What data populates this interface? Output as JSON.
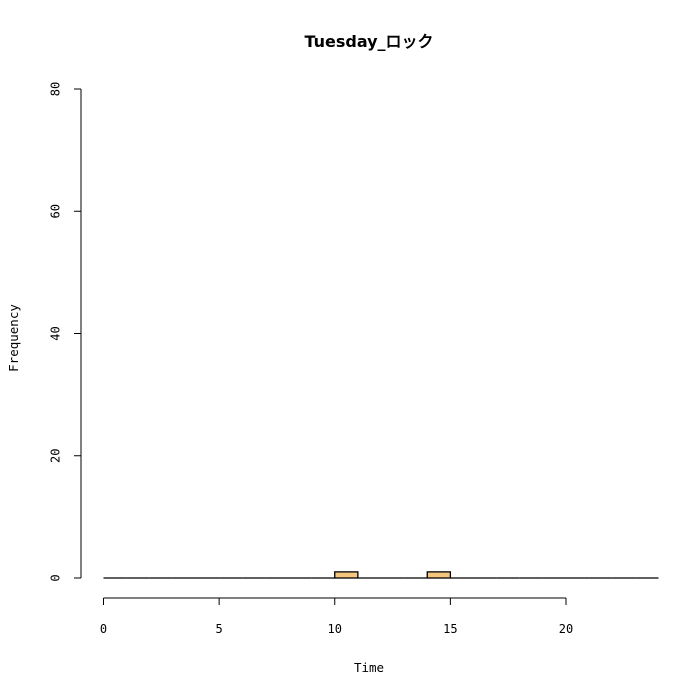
{
  "chart_data": {
    "type": "bar",
    "title": "Tuesday_ロック",
    "xlabel": "Time",
    "ylabel": "Frequency",
    "xlim": [
      0,
      24
    ],
    "ylim": [
      0,
      80
    ],
    "x_ticks": [
      0,
      5,
      10,
      15,
      20
    ],
    "y_ticks": [
      0,
      20,
      40,
      60,
      80
    ],
    "bin_width": 1,
    "bins": [
      0,
      1,
      2,
      3,
      4,
      5,
      6,
      7,
      8,
      9,
      10,
      11,
      12,
      13,
      14,
      15,
      16,
      17,
      18,
      19,
      20,
      21,
      22,
      23
    ],
    "values": [
      0,
      0,
      0,
      0,
      0,
      0,
      0,
      0,
      0,
      0,
      1,
      0,
      0,
      0,
      1,
      0,
      0,
      0,
      0,
      0,
      0,
      0,
      0,
      0
    ],
    "bar_color": "#f5c77e",
    "bar_edge_color": "#000000",
    "grid": false,
    "legend": "none"
  }
}
